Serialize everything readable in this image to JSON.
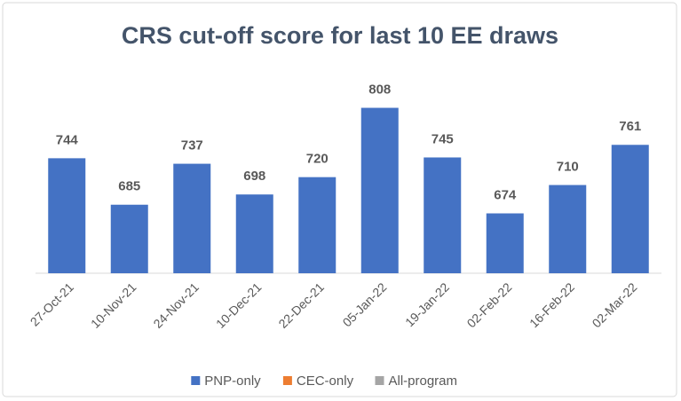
{
  "chart_data": {
    "type": "bar",
    "title": "CRS cut-off score for last 10 EE draws",
    "categories": [
      "27-Oct-21",
      "10-Nov-21",
      "24-Nov-21",
      "10-Dec-21",
      "22-Dec-21",
      "05-Jan-22",
      "19-Jan-22",
      "02-Feb-22",
      "16-Feb-22",
      "02-Mar-22"
    ],
    "series": [
      {
        "name": "PNP-only",
        "color": "#4472c4",
        "values": [
          744,
          685,
          737,
          698,
          720,
          808,
          745,
          674,
          710,
          761
        ]
      },
      {
        "name": "CEC-only",
        "color": "#ed7d31",
        "values": [
          null,
          null,
          null,
          null,
          null,
          null,
          null,
          null,
          null,
          null
        ]
      },
      {
        "name": "All-program",
        "color": "#a5a5a5",
        "values": [
          null,
          null,
          null,
          null,
          null,
          null,
          null,
          null,
          null,
          null
        ]
      }
    ],
    "ylim": [
      598,
      830
    ],
    "legend": "bottom"
  }
}
